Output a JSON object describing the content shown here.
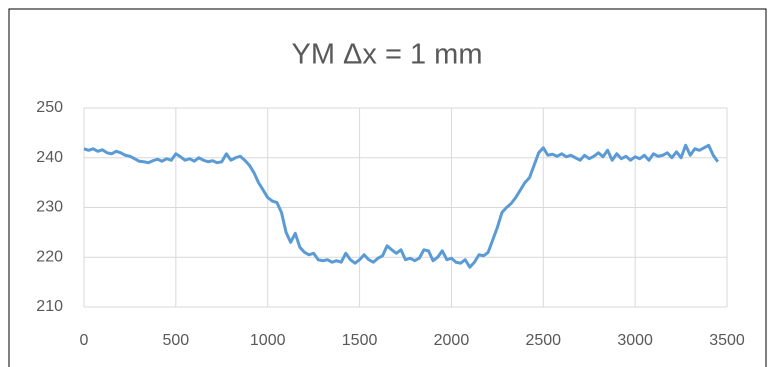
{
  "chart_data": {
    "type": "line",
    "title": "YM Δx = 1 mm",
    "x": [
      0,
      25,
      50,
      75,
      100,
      125,
      150,
      175,
      200,
      225,
      250,
      275,
      300,
      325,
      350,
      375,
      400,
      425,
      450,
      475,
      500,
      525,
      550,
      575,
      600,
      625,
      650,
      675,
      700,
      725,
      750,
      775,
      800,
      825,
      850,
      875,
      900,
      925,
      950,
      975,
      1000,
      1025,
      1050,
      1075,
      1100,
      1125,
      1150,
      1175,
      1200,
      1225,
      1250,
      1275,
      1300,
      1325,
      1350,
      1375,
      1400,
      1425,
      1450,
      1475,
      1500,
      1525,
      1550,
      1575,
      1600,
      1625,
      1650,
      1675,
      1700,
      1725,
      1750,
      1775,
      1800,
      1825,
      1850,
      1875,
      1900,
      1925,
      1950,
      1975,
      2000,
      2025,
      2050,
      2075,
      2100,
      2125,
      2150,
      2175,
      2200,
      2225,
      2250,
      2275,
      2300,
      2325,
      2350,
      2375,
      2400,
      2425,
      2450,
      2475,
      2500,
      2525,
      2550,
      2575,
      2600,
      2625,
      2650,
      2675,
      2700,
      2725,
      2750,
      2775,
      2800,
      2825,
      2850,
      2875,
      2900,
      2925,
      2950,
      2975,
      3000,
      3025,
      3050,
      3075,
      3100,
      3125,
      3150,
      3175,
      3200,
      3225,
      3250,
      3275,
      3300,
      3325,
      3350,
      3375,
      3400,
      3425,
      3450
    ],
    "series": [
      {
        "color": "#5b9bd5",
        "values": [
          241.8,
          241.5,
          241.8,
          241.3,
          241.6,
          241.0,
          240.8,
          241.3,
          241.0,
          240.5,
          240.3,
          239.8,
          239.3,
          239.2,
          239.0,
          239.4,
          239.7,
          239.3,
          239.8,
          239.5,
          240.8,
          240.2,
          239.5,
          239.8,
          239.3,
          240.0,
          239.5,
          239.2,
          239.4,
          239.0,
          239.2,
          240.8,
          239.5,
          240.0,
          240.3,
          239.5,
          238.5,
          237.0,
          235.0,
          233.5,
          232.0,
          231.3,
          231.0,
          229.0,
          225.0,
          223.0,
          224.8,
          222.0,
          221.0,
          220.5,
          220.8,
          219.5,
          219.3,
          219.5,
          219.0,
          219.3,
          219.0,
          220.8,
          219.5,
          218.8,
          219.5,
          220.5,
          219.5,
          219.0,
          219.8,
          220.3,
          222.3,
          221.5,
          220.8,
          221.5,
          219.5,
          219.8,
          219.3,
          219.8,
          221.5,
          221.3,
          219.3,
          220.0,
          221.3,
          219.5,
          219.8,
          219.0,
          218.8,
          219.5,
          218.0,
          219.0,
          220.5,
          220.3,
          221.0,
          223.5,
          226.0,
          229.0,
          230.0,
          230.8,
          232.0,
          233.5,
          235.0,
          236.0,
          238.5,
          241.0,
          242.0,
          240.5,
          240.7,
          240.3,
          240.8,
          240.2,
          240.5,
          240.0,
          239.5,
          240.5,
          239.8,
          240.3,
          241.0,
          240.2,
          241.5,
          239.5,
          240.8,
          239.8,
          240.3,
          239.5,
          240.2,
          239.8,
          240.5,
          239.5,
          240.8,
          240.3,
          240.5,
          241.0,
          240.0,
          241.2,
          240.0,
          242.5,
          240.5,
          241.8,
          241.5,
          242.0,
          242.5,
          240.5,
          239.2
        ]
      }
    ],
    "xlim": [
      0,
      3500
    ],
    "xticks": [
      0,
      500,
      1000,
      1500,
      2000,
      2500,
      3000,
      3500
    ],
    "ylim": [
      210,
      250
    ],
    "yticks": [
      210,
      220,
      230,
      240,
      250
    ],
    "grid": true
  }
}
